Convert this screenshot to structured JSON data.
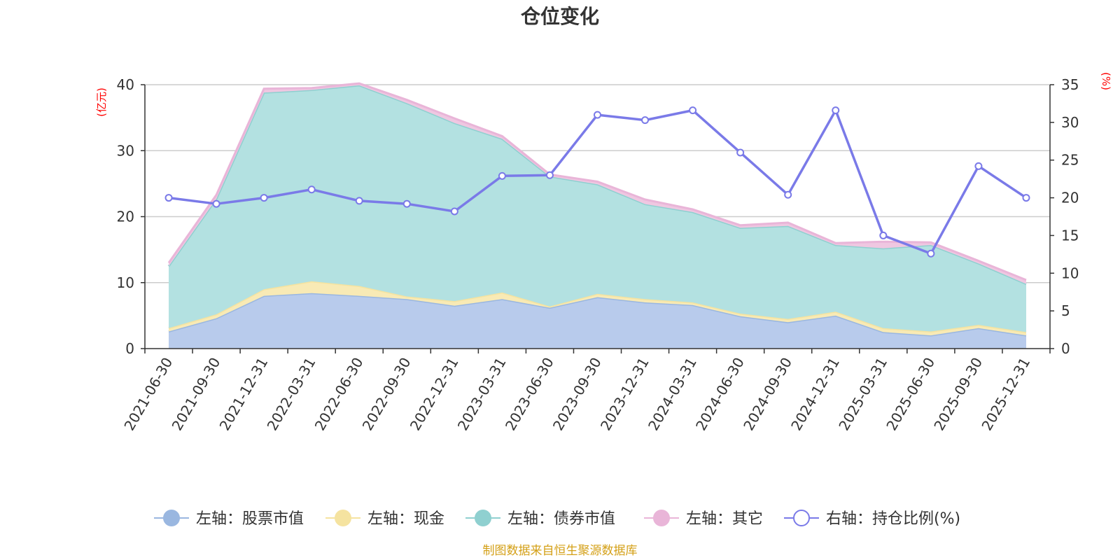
{
  "chart_data": {
    "type": "area",
    "title": "仓位变化",
    "left_unit": "(亿元)",
    "right_unit": "(%)",
    "categories": [
      "2021-06-30",
      "2021-09-30",
      "2021-12-31",
      "2022-03-31",
      "2022-06-30",
      "2022-09-30",
      "2022-12-31",
      "2023-03-31",
      "2023-06-30",
      "2023-09-30",
      "2023-12-31",
      "2024-03-31",
      "2024-06-30",
      "2024-09-30",
      "2024-12-31",
      "2025-03-31",
      "2025-06-30",
      "2025-09-30",
      "2025-12-31"
    ],
    "left_ylim": [
      0,
      40
    ],
    "left_ticks": [
      "0",
      "10",
      "20",
      "30",
      "40"
    ],
    "right_ylim": [
      0,
      35
    ],
    "right_ticks": [
      "0",
      "5",
      "10",
      "15",
      "20",
      "25",
      "30",
      "35"
    ],
    "stack_order": [
      "stock",
      "cash",
      "bond",
      "other"
    ],
    "series": [
      {
        "key": "stock",
        "name": "左轴：股票市值",
        "axis": "left",
        "color": "#9ab7e0",
        "fill": "#b8cbec",
        "values": [
          2.6,
          4.6,
          8.0,
          8.4,
          8.0,
          7.5,
          6.5,
          7.5,
          6.2,
          7.8,
          7.0,
          6.6,
          4.9,
          4.0,
          5.0,
          2.5,
          2.0,
          3.1,
          2.0
        ]
      },
      {
        "key": "cash",
        "name": "左轴：现金",
        "axis": "left",
        "color": "#f5e3a0",
        "fill": "#f8eab5",
        "values": [
          0.5,
          0.6,
          1.0,
          1.8,
          1.5,
          0.4,
          0.7,
          1.0,
          0.2,
          0.5,
          0.5,
          0.4,
          0.4,
          0.5,
          0.6,
          0.6,
          0.6,
          0.5,
          0.5
        ]
      },
      {
        "key": "bond",
        "name": "左轴：债券市值",
        "axis": "left",
        "color": "#8fd0d0",
        "fill": "#b3e1e1",
        "values": [
          9.4,
          17.5,
          29.8,
          29.0,
          30.4,
          29.3,
          27.0,
          23.3,
          19.7,
          16.6,
          14.4,
          13.7,
          13.0,
          14.1,
          10.1,
          12.1,
          13.1,
          9.3,
          7.3
        ]
      },
      {
        "key": "other",
        "name": "左轴：其它",
        "axis": "left",
        "color": "#e9b5d8",
        "fill": "#efc7e1",
        "values": [
          0.5,
          0.6,
          0.6,
          0.3,
          0.3,
          0.5,
          0.7,
          0.4,
          0.3,
          0.4,
          0.7,
          0.4,
          0.4,
          0.5,
          0.3,
          1.0,
          0.4,
          0.4,
          0.6
        ]
      },
      {
        "key": "ratio",
        "name": "右轴：持仓比例(%)",
        "axis": "right",
        "color": "#7a7ae8",
        "values": [
          20.0,
          19.2,
          20.0,
          21.1,
          19.6,
          19.2,
          18.2,
          22.9,
          23.0,
          31.0,
          30.3,
          31.6,
          26.0,
          20.4,
          31.6,
          15.0,
          12.6,
          24.2,
          20.0
        ]
      }
    ],
    "legend_position": "bottom",
    "grid": true
  },
  "source_note": "制图数据来自恒生聚源数据库"
}
